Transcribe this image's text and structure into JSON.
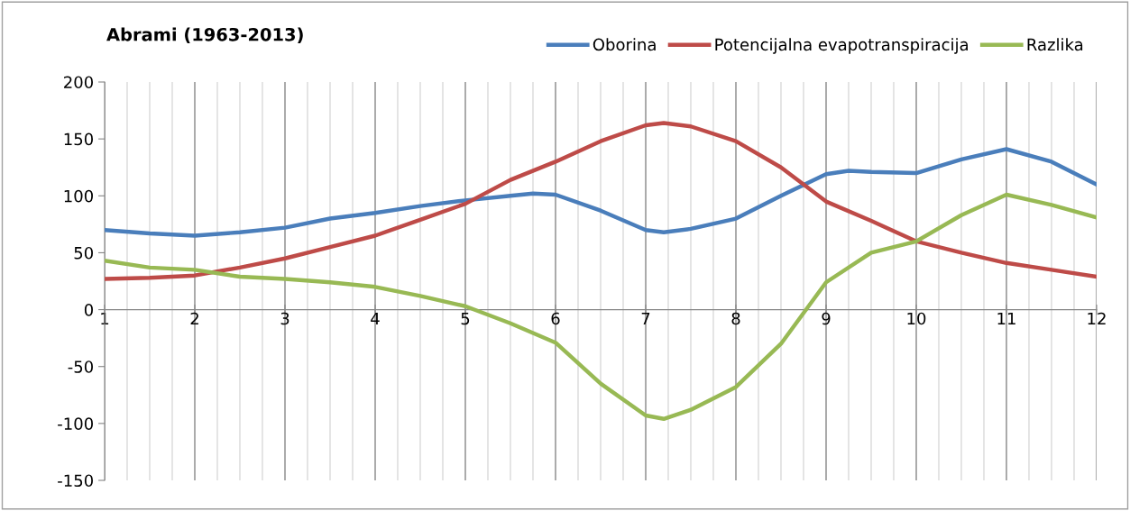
{
  "chart_data": {
    "type": "line",
    "title": "Abrami (1963-2013)",
    "series": [
      {
        "name": "Oborina",
        "color": "#4a7ebb",
        "x": [
          1,
          1.5,
          2,
          2.5,
          3,
          3.5,
          4,
          4.5,
          5,
          5.5,
          5.75,
          6,
          6.5,
          7,
          7.2,
          7.5,
          8,
          8.5,
          9,
          9.25,
          9.5,
          10,
          10.5,
          11,
          11.5,
          12
        ],
        "values": [
          70,
          67,
          65,
          68,
          72,
          80,
          85,
          91,
          96,
          100,
          102,
          101,
          87,
          70,
          68,
          71,
          80,
          100,
          119,
          122,
          121,
          120,
          132,
          141,
          130,
          110
        ]
      },
      {
        "name": "Potencijalna evapotranspiracija",
        "color": "#be4b48",
        "x": [
          1,
          1.5,
          2,
          2.5,
          3,
          3.5,
          4,
          4.5,
          5,
          5.5,
          6,
          6.5,
          7,
          7.2,
          7.5,
          8,
          8.5,
          9,
          9.5,
          10,
          10.5,
          11,
          11.5,
          12
        ],
        "values": [
          27,
          28,
          30,
          37,
          45,
          55,
          65,
          79,
          93,
          114,
          130,
          148,
          162,
          164,
          161,
          148,
          125,
          95,
          78,
          60,
          50,
          41,
          35,
          29
        ]
      },
      {
        "name": "Razlika",
        "color": "#98b954",
        "x": [
          1,
          1.5,
          2,
          2.5,
          3,
          3.5,
          4,
          4.5,
          5,
          5.5,
          6,
          6.5,
          7,
          7.2,
          7.5,
          8,
          8.5,
          9,
          9.5,
          10,
          10.5,
          11,
          11.5,
          12
        ],
        "values": [
          43,
          37,
          35,
          29,
          27,
          24,
          20,
          12,
          3,
          -12,
          -29,
          -65,
          -93,
          -96,
          -88,
          -68,
          -30,
          24,
          50,
          60,
          83,
          101,
          92,
          81
        ]
      }
    ],
    "xlim": [
      1,
      12
    ],
    "xticks": [
      1,
      2,
      3,
      4,
      5,
      6,
      7,
      8,
      9,
      10,
      11,
      12
    ],
    "ylim": [
      -150,
      200
    ],
    "yticks": [
      -150,
      -100,
      -50,
      0,
      50,
      100,
      150,
      200
    ],
    "grid": "x",
    "legend": "top right",
    "marker": "none",
    "line_style": "solid"
  }
}
